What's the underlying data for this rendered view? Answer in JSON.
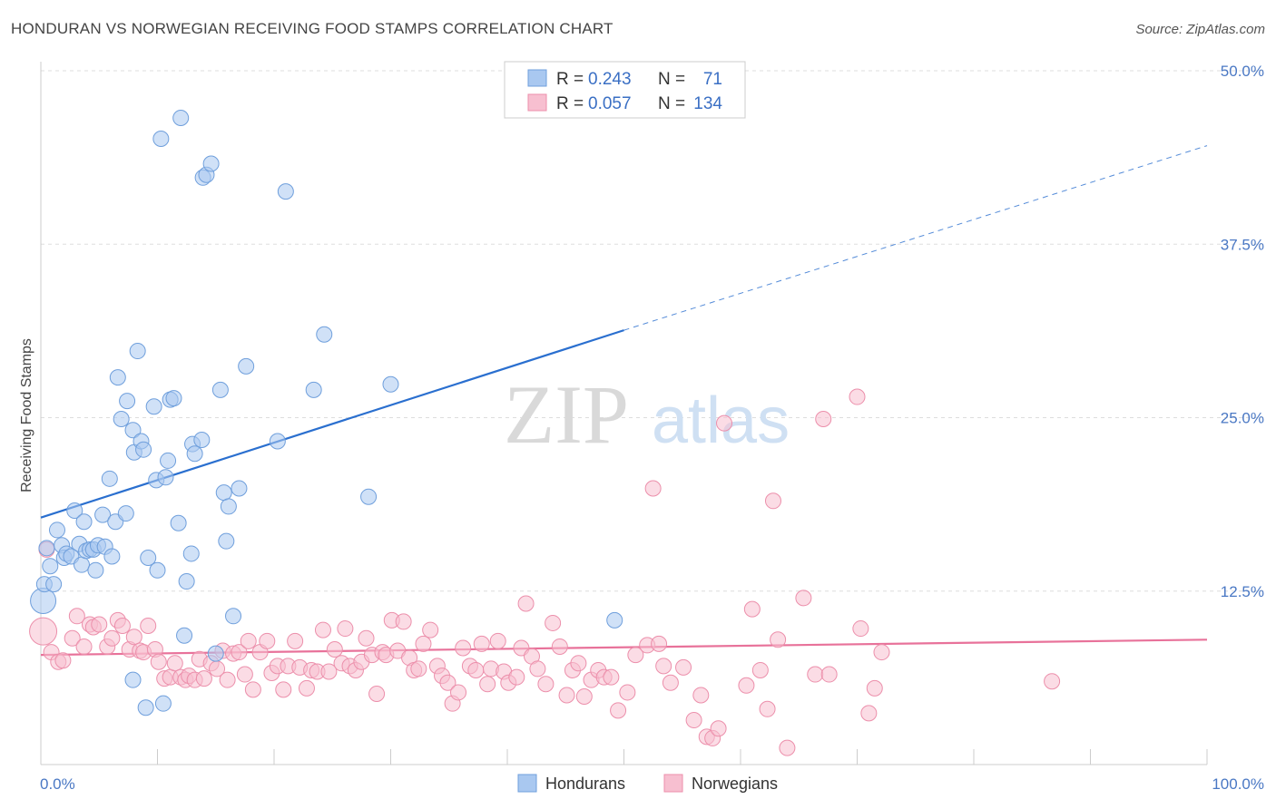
{
  "title": "HONDURAN VS NORWEGIAN RECEIVING FOOD STAMPS CORRELATION CHART",
  "source": "Source: ZipAtlas.com",
  "watermark": {
    "zip": "ZIP",
    "atlas": "atlas"
  },
  "colors": {
    "blue_fill": "#a9c8f0",
    "blue_stroke": "#6f9fdc",
    "blue_line": "#2a6fcf",
    "pink_fill": "#f7bfd0",
    "pink_stroke": "#ec8fab",
    "pink_line": "#e8729a",
    "tick_text": "#4a78c4",
    "grid": "#dddddd"
  },
  "legend": {
    "rows": [
      {
        "r_label": "R =",
        "r_value": "0.243",
        "n_label": "N =",
        "n_value": "71",
        "series": "blue"
      },
      {
        "r_label": "R =",
        "r_value": "0.057",
        "n_label": "N =",
        "n_value": "134",
        "series": "pink"
      }
    ]
  },
  "bottom_legend": [
    "Hondurans",
    "Norwegians"
  ],
  "chart_data": {
    "type": "scatter",
    "title": "HONDURAN VS NORWEGIAN RECEIVING FOOD STAMPS CORRELATION CHART",
    "xlabel": "",
    "ylabel": "Receiving Food Stamps",
    "xlim": [
      0,
      100
    ],
    "ylim": [
      0,
      50
    ],
    "x_tick_labels": [
      "0.0%",
      "100.0%"
    ],
    "y_ticks": [
      12.5,
      25.0,
      37.5,
      50.0
    ],
    "y_tick_labels": [
      "12.5%",
      "25.0%",
      "37.5%",
      "50.0%"
    ],
    "grid": "horizontal dashed",
    "legend_position": "top-center",
    "series": [
      {
        "name": "Hondurans",
        "color": "#a9c8f0",
        "trend": {
          "x0": 0,
          "y0": 17.8,
          "x1": 50,
          "y1": 31.3,
          "dash_to_x": 100,
          "dash_to_y": 44.6
        },
        "points": [
          [
            0.2,
            11.8
          ],
          [
            0.3,
            13.0
          ],
          [
            0.5,
            15.6
          ],
          [
            0.8,
            14.3
          ],
          [
            1.1,
            13.0
          ],
          [
            1.4,
            16.9
          ],
          [
            1.8,
            15.8
          ],
          [
            2.0,
            14.9
          ],
          [
            2.2,
            15.2
          ],
          [
            2.6,
            15.0
          ],
          [
            2.9,
            18.3
          ],
          [
            3.3,
            15.9
          ],
          [
            3.5,
            14.4
          ],
          [
            3.7,
            17.5
          ],
          [
            3.9,
            15.4
          ],
          [
            4.2,
            15.5
          ],
          [
            4.5,
            15.5
          ],
          [
            4.7,
            14.0
          ],
          [
            4.9,
            15.8
          ],
          [
            5.3,
            18.0
          ],
          [
            5.5,
            15.7
          ],
          [
            5.9,
            20.6
          ],
          [
            6.1,
            15.0
          ],
          [
            6.4,
            17.5
          ],
          [
            6.6,
            27.9
          ],
          [
            6.9,
            24.9
          ],
          [
            7.3,
            18.1
          ],
          [
            7.4,
            26.2
          ],
          [
            7.9,
            6.1
          ],
          [
            7.9,
            24.1
          ],
          [
            8.0,
            22.5
          ],
          [
            8.3,
            29.8
          ],
          [
            8.6,
            23.3
          ],
          [
            8.8,
            22.7
          ],
          [
            9.0,
            4.1
          ],
          [
            9.2,
            14.9
          ],
          [
            9.7,
            25.8
          ],
          [
            9.9,
            20.5
          ],
          [
            10.0,
            14.0
          ],
          [
            10.3,
            45.1
          ],
          [
            10.5,
            4.4
          ],
          [
            10.7,
            20.7
          ],
          [
            10.9,
            21.9
          ],
          [
            11.1,
            26.3
          ],
          [
            11.4,
            26.4
          ],
          [
            11.8,
            17.4
          ],
          [
            12.0,
            46.6
          ],
          [
            12.3,
            9.3
          ],
          [
            12.5,
            13.2
          ],
          [
            12.9,
            15.2
          ],
          [
            13.0,
            23.1
          ],
          [
            13.2,
            22.4
          ],
          [
            13.8,
            23.4
          ],
          [
            13.9,
            42.3
          ],
          [
            14.2,
            42.5
          ],
          [
            14.6,
            43.3
          ],
          [
            15.4,
            27.0
          ],
          [
            15.7,
            19.6
          ],
          [
            15.9,
            16.1
          ],
          [
            16.1,
            18.6
          ],
          [
            16.5,
            10.7
          ],
          [
            17.0,
            19.9
          ],
          [
            17.6,
            28.7
          ],
          [
            20.3,
            23.3
          ],
          [
            21.0,
            41.3
          ],
          [
            23.4,
            27.0
          ],
          [
            24.3,
            31.0
          ],
          [
            28.1,
            19.3
          ],
          [
            30.0,
            27.4
          ],
          [
            49.2,
            10.4
          ],
          [
            15.0,
            8.0
          ]
        ]
      },
      {
        "name": "Norwegians",
        "color": "#f7bfd0",
        "trend": {
          "x0": 0,
          "y0": 7.9,
          "x1": 100,
          "y1": 9.0
        },
        "points": [
          [
            0.2,
            9.6
          ],
          [
            0.5,
            15.5
          ],
          [
            0.9,
            8.1
          ],
          [
            1.5,
            7.4
          ],
          [
            1.9,
            7.5
          ],
          [
            2.7,
            9.1
          ],
          [
            3.1,
            10.7
          ],
          [
            3.7,
            8.5
          ],
          [
            4.2,
            10.1
          ],
          [
            4.5,
            9.9
          ],
          [
            5.0,
            10.1
          ],
          [
            5.7,
            8.5
          ],
          [
            6.1,
            9.1
          ],
          [
            6.6,
            10.4
          ],
          [
            7.0,
            10.0
          ],
          [
            7.6,
            8.3
          ],
          [
            8.0,
            9.2
          ],
          [
            8.5,
            8.2
          ],
          [
            8.8,
            8.1
          ],
          [
            9.2,
            10.0
          ],
          [
            9.8,
            8.3
          ],
          [
            10.1,
            7.4
          ],
          [
            10.6,
            6.2
          ],
          [
            11.1,
            6.3
          ],
          [
            11.5,
            7.3
          ],
          [
            12.0,
            6.3
          ],
          [
            12.4,
            6.1
          ],
          [
            12.7,
            6.4
          ],
          [
            13.2,
            6.1
          ],
          [
            13.6,
            7.6
          ],
          [
            14.0,
            6.2
          ],
          [
            14.6,
            7.3
          ],
          [
            15.1,
            6.9
          ],
          [
            15.6,
            8.2
          ],
          [
            16.0,
            6.1
          ],
          [
            16.5,
            8.0
          ],
          [
            17.0,
            8.1
          ],
          [
            17.5,
            6.5
          ],
          [
            17.8,
            8.9
          ],
          [
            18.2,
            5.4
          ],
          [
            18.8,
            8.1
          ],
          [
            19.4,
            8.9
          ],
          [
            19.8,
            6.6
          ],
          [
            20.3,
            7.1
          ],
          [
            20.8,
            5.4
          ],
          [
            21.2,
            7.1
          ],
          [
            21.8,
            8.9
          ],
          [
            22.2,
            7.0
          ],
          [
            22.8,
            5.5
          ],
          [
            23.2,
            6.8
          ],
          [
            23.7,
            6.7
          ],
          [
            24.2,
            9.7
          ],
          [
            24.7,
            6.7
          ],
          [
            25.2,
            8.3
          ],
          [
            25.8,
            7.3
          ],
          [
            26.1,
            9.8
          ],
          [
            26.5,
            7.1
          ],
          [
            27.0,
            6.8
          ],
          [
            27.5,
            7.4
          ],
          [
            27.9,
            9.1
          ],
          [
            28.4,
            7.9
          ],
          [
            28.8,
            5.1
          ],
          [
            29.3,
            8.1
          ],
          [
            29.6,
            7.9
          ],
          [
            30.1,
            10.4
          ],
          [
            30.6,
            8.2
          ],
          [
            31.1,
            10.3
          ],
          [
            31.6,
            7.7
          ],
          [
            32.0,
            6.8
          ],
          [
            32.4,
            6.9
          ],
          [
            32.8,
            8.7
          ],
          [
            33.4,
            9.7
          ],
          [
            34.0,
            7.1
          ],
          [
            34.4,
            6.4
          ],
          [
            34.9,
            5.9
          ],
          [
            35.3,
            4.4
          ],
          [
            35.8,
            5.2
          ],
          [
            36.2,
            8.4
          ],
          [
            36.8,
            7.1
          ],
          [
            37.3,
            6.8
          ],
          [
            37.8,
            8.7
          ],
          [
            38.3,
            5.8
          ],
          [
            38.6,
            6.9
          ],
          [
            39.2,
            8.9
          ],
          [
            39.7,
            6.7
          ],
          [
            40.1,
            5.9
          ],
          [
            40.8,
            6.3
          ],
          [
            41.2,
            8.4
          ],
          [
            41.6,
            11.6
          ],
          [
            42.1,
            7.8
          ],
          [
            42.6,
            6.9
          ],
          [
            43.3,
            5.8
          ],
          [
            43.9,
            10.2
          ],
          [
            44.5,
            8.5
          ],
          [
            45.1,
            5.0
          ],
          [
            45.6,
            6.8
          ],
          [
            46.1,
            7.3
          ],
          [
            46.6,
            4.9
          ],
          [
            47.2,
            6.1
          ],
          [
            47.8,
            6.8
          ],
          [
            48.3,
            6.3
          ],
          [
            48.9,
            6.3
          ],
          [
            49.5,
            3.9
          ],
          [
            50.3,
            5.2
          ],
          [
            51.0,
            7.9
          ],
          [
            52.0,
            8.6
          ],
          [
            52.5,
            19.9
          ],
          [
            53.0,
            8.7
          ],
          [
            53.4,
            7.1
          ],
          [
            54.0,
            5.9
          ],
          [
            55.1,
            7.0
          ],
          [
            56.0,
            3.2
          ],
          [
            56.6,
            5.0
          ],
          [
            57.1,
            2.0
          ],
          [
            57.6,
            1.9
          ],
          [
            58.1,
            2.6
          ],
          [
            58.6,
            24.6
          ],
          [
            60.5,
            5.7
          ],
          [
            61.0,
            11.2
          ],
          [
            61.7,
            6.8
          ],
          [
            62.3,
            4.0
          ],
          [
            62.8,
            19.0
          ],
          [
            63.2,
            9.0
          ],
          [
            64.0,
            1.2
          ],
          [
            65.4,
            12.0
          ],
          [
            66.4,
            6.5
          ],
          [
            67.1,
            24.9
          ],
          [
            67.6,
            6.5
          ],
          [
            70.0,
            26.5
          ],
          [
            70.3,
            9.8
          ],
          [
            71.0,
            3.7
          ],
          [
            71.5,
            5.5
          ],
          [
            72.1,
            8.1
          ],
          [
            86.7,
            6.0
          ]
        ]
      }
    ]
  }
}
